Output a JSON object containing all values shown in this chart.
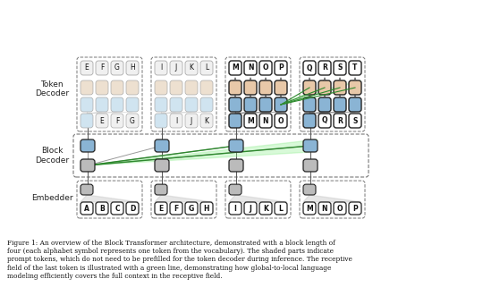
{
  "figure_width": 5.4,
  "figure_height": 3.4,
  "dpi": 100,
  "bg_color": "#ffffff",
  "caption": "Figure 1: An overview of the Block Transformer architecture, demonstrated with a block length of\nfour (each alphabet symbol represents one token from the vocabulary). The shaded parts indicate\nprompt tokens, which do not need to be prefilled for the token decoder during inference. The receptive\nfield of the last token is illustrated with a green line, demonstrating how global-to-local language\nmodeling efficiently covers the full context in the receptive field.",
  "caption_fontsize": 5.3,
  "colors": {
    "white_box": "#ffffff",
    "blue_box": "#8ab4d4",
    "peach_box": "#e8c8a8",
    "gray_box": "#bbbbbb",
    "light_blue_box": "#d0e4f0",
    "light_peach_box": "#f0e4d8",
    "light_white_box": "#f0f0f0",
    "green_fill": "#90EE90",
    "green_line": "#2d8a2d",
    "gray_line": "#999999",
    "dark_border": "#222222",
    "light_border": "#aaaaaa",
    "dashed_color": "#777777"
  },
  "embedder_letters": [
    [
      "A",
      "B",
      "C",
      "D"
    ],
    [
      "E",
      "F",
      "G",
      "H"
    ],
    [
      "I",
      "J",
      "K",
      "L"
    ],
    [
      "M",
      "N",
      "O",
      "P"
    ]
  ],
  "td_top_letters": [
    [
      "E",
      "F",
      "G",
      "H"
    ],
    [
      "I",
      "J",
      "K",
      "L"
    ],
    [
      "M",
      "N",
      "O",
      "P"
    ],
    [
      "Q",
      "R",
      "S",
      "T"
    ]
  ],
  "td_bot_letters": [
    [
      "E",
      "F",
      "G"
    ],
    [
      "I",
      "J",
      "K"
    ],
    [
      "M",
      "N",
      "O"
    ],
    [
      "Q",
      "R",
      "S"
    ]
  ]
}
